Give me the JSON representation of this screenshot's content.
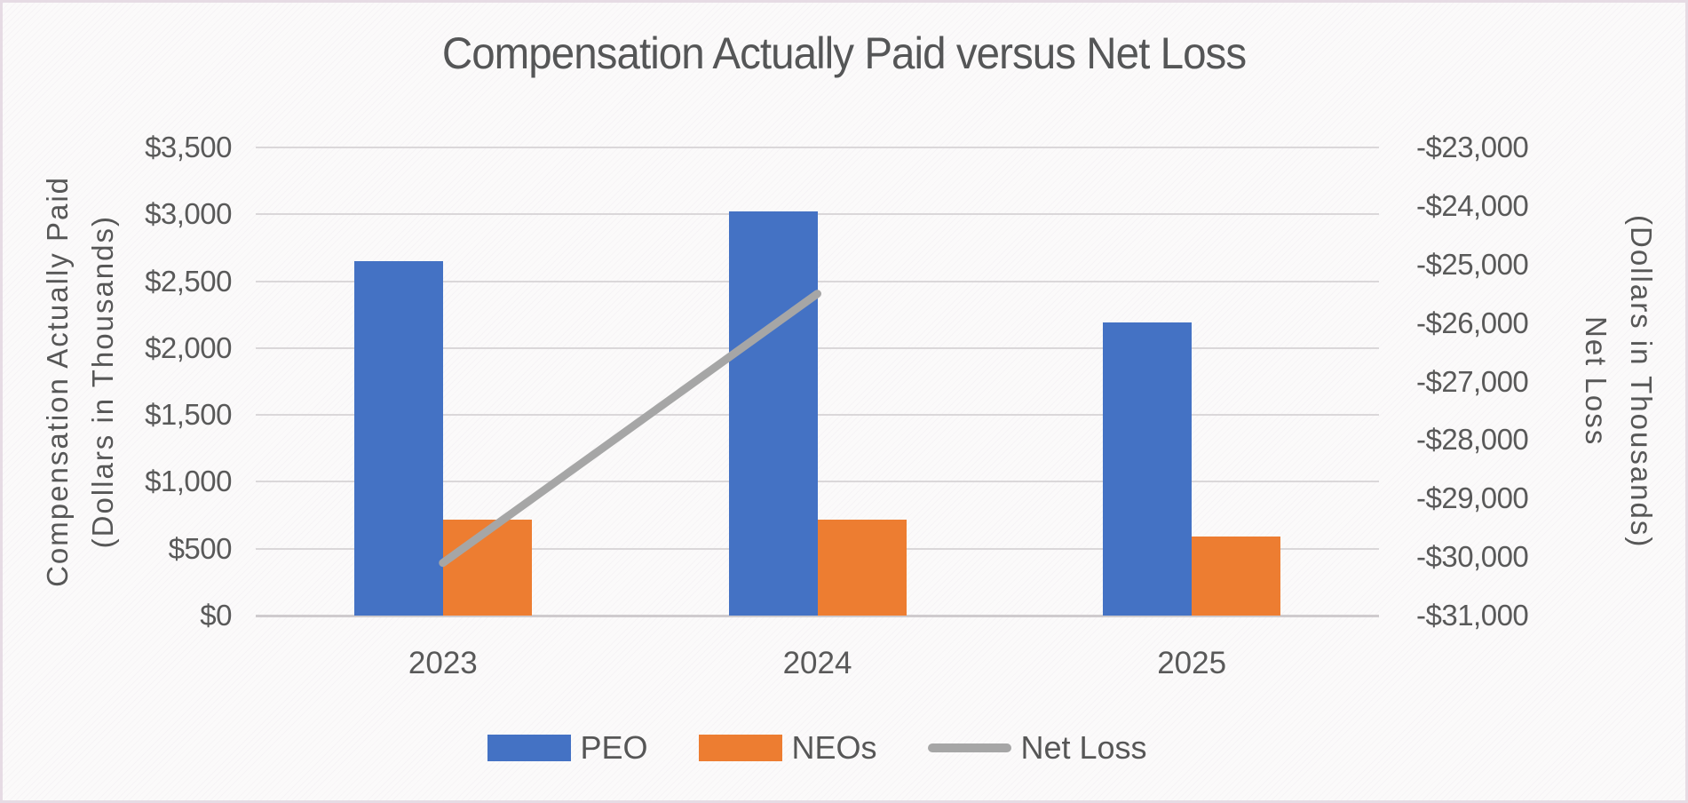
{
  "title": "Compensation Actually Paid versus Net Loss",
  "chart_data": {
    "type": "bar",
    "subtype": "combo-bar-line-dual-axis",
    "title": "Compensation Actually Paid versus Net Loss",
    "categories": [
      "2023",
      "2024",
      "2025"
    ],
    "series": [
      {
        "name": "PEO",
        "render": "bar",
        "axis": "left",
        "color": "#4472c4",
        "values": [
          2650,
          3020,
          2190
        ]
      },
      {
        "name": "NEOs",
        "render": "bar",
        "axis": "left",
        "color": "#ed7d31",
        "values": [
          720,
          720,
          590
        ]
      },
      {
        "name": "Net Loss",
        "render": "line",
        "axis": "right",
        "color": "#a6a6a6",
        "values": [
          -30100,
          -25500,
          null
        ]
      }
    ],
    "left_axis": {
      "title_lines": [
        "Compensation Actually Paid",
        "(Dollars in Thousands)"
      ],
      "min": 0,
      "max": 3500,
      "step": 500,
      "tick_labels": [
        "$3,500",
        "$3,000",
        "$2,500",
        "$2,000",
        "$1,500",
        "$1,000",
        "$500",
        "$0"
      ]
    },
    "right_axis": {
      "title_lines": [
        "Net Loss",
        "(Dollars in Thousands)"
      ],
      "min": -31000,
      "max": -23000,
      "step": 1000,
      "tick_labels": [
        "-$23,000",
        "-$24,000",
        "-$25,000",
        "-$26,000",
        "-$27,000",
        "-$28,000",
        "-$29,000",
        "-$30,000",
        "-$31,000"
      ]
    },
    "grid": true,
    "legend_position": "bottom",
    "legend": [
      "PEO",
      "NEOs",
      "Net Loss"
    ],
    "colors": {
      "peo": "#4472c4",
      "neos": "#ed7d31",
      "net_loss_line": "#a6a6a6",
      "text": "#595959",
      "gridline": "#dad7d9",
      "zero_axis": "#cfcbce",
      "background": "#fbfafa",
      "frame_border": "#e6dbe4"
    }
  }
}
